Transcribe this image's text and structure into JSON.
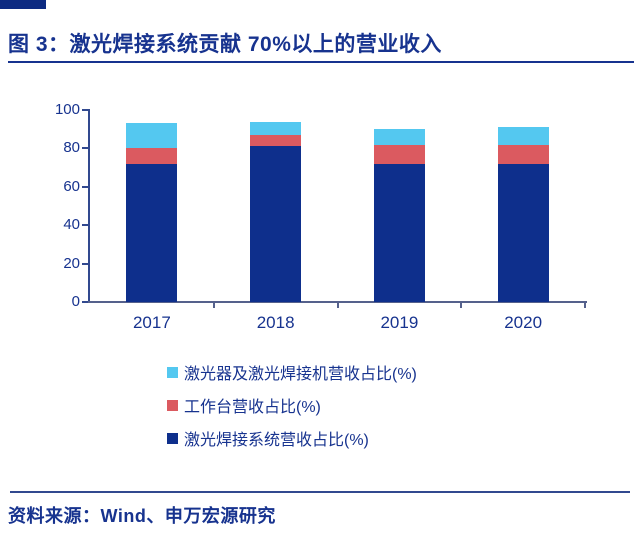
{
  "page": {
    "title": "图 3：激光焊接系统贡献 70%以上的营业收入",
    "source": "资料来源：Wind、申万宏源研究"
  },
  "colors": {
    "text_blue": "#17338F",
    "axis_blue": "#31498F",
    "x_axis": "#55618C",
    "top_strip": "#0D2B82",
    "series_system_navy": "#0E2F8C",
    "series_workbench_red": "#DB5A60",
    "series_laser_cyan": "#54C8F0"
  },
  "chart_data": {
    "type": "bar",
    "stacked": true,
    "title": "激光焊接系统贡献 70%以上的营业收入",
    "categories": [
      "2017",
      "2018",
      "2019",
      "2020"
    ],
    "series": [
      {
        "name": "激光焊接系统营收占比(%)",
        "color_key": "series_system_navy",
        "values": [
          72,
          81,
          72,
          72
        ]
      },
      {
        "name": "工作台营收占比(%)",
        "color_key": "series_workbench_red",
        "values": [
          8,
          6,
          10,
          10
        ]
      },
      {
        "name": "激光器及激光焊接机营收占比(%)",
        "color_key": "series_laser_cyan",
        "values": [
          13,
          7,
          8,
          9
        ]
      }
    ],
    "totals": [
      93,
      94,
      90,
      91
    ],
    "xlabel": "",
    "ylabel": "",
    "ylim": [
      0,
      100
    ],
    "yticks": [
      0,
      20,
      40,
      60,
      80,
      100
    ],
    "grid": false,
    "legend_position": "bottom-left",
    "legend_order_top_to_bottom": [
      "激光器及激光焊接机营收占比(%)",
      "工作台营收占比(%)",
      "激光焊接系统营收占比(%)"
    ]
  },
  "legend": {
    "items": [
      {
        "label": "激光器及激光焊接机营收占比(%)",
        "color_key": "series_laser_cyan"
      },
      {
        "label": "工作台营收占比(%)",
        "color_key": "series_workbench_red"
      },
      {
        "label": "激光焊接系统营收占比(%)",
        "color_key": "series_system_navy"
      }
    ]
  }
}
